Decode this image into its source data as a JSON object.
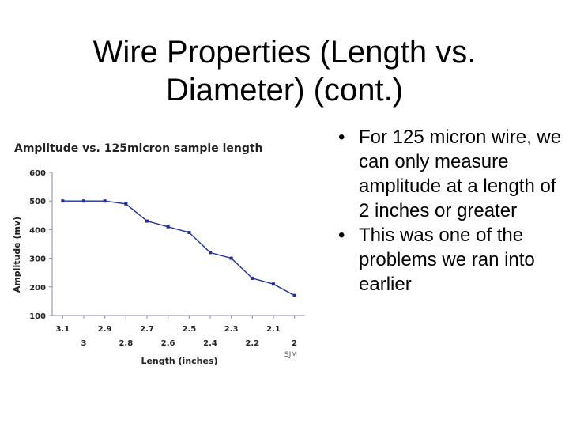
{
  "slide": {
    "title_line1": "Wire Properties (Length vs.",
    "title_line2": "Diameter) (cont.)"
  },
  "bullets": [
    {
      "text": "For 125 micron wire, we can only measure amplitude at a length of 2 inches or greater"
    },
    {
      "text": "This was one of the problems we ran into earlier"
    }
  ],
  "chart_data": {
    "type": "line",
    "title": "Amplitude vs. 125micron sample length",
    "xlabel": "Length (inches)",
    "ylabel": "Amplitude (mv)",
    "categories": [
      "3.1",
      "3",
      "2.9",
      "2.8",
      "2.7",
      "2.6",
      "2.5",
      "2.4",
      "2.3",
      "2.2",
      "2.1",
      "2"
    ],
    "series": [
      {
        "values": [
          500,
          500,
          500,
          490,
          430,
          410,
          390,
          320,
          300,
          230,
          210,
          170
        ]
      }
    ],
    "ylim": [
      100,
      600
    ],
    "yticks": [
      "600",
      "500",
      "400",
      "300",
      "200",
      "100"
    ],
    "annotation": "SJM",
    "grid": false,
    "colors": {
      "line": "#1f2f9c",
      "axis": "#8a8aa0",
      "text": "#222222"
    }
  }
}
